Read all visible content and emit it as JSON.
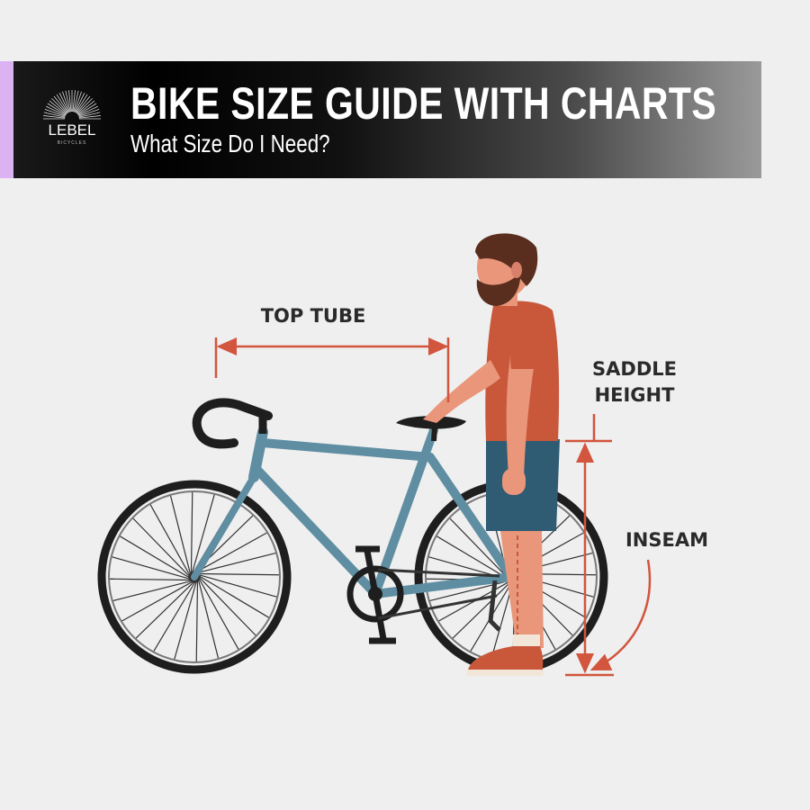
{
  "header": {
    "title": "BIKE SIZE GUIDE WITH CHARTS",
    "subtitle": "What Size Do I Need?",
    "logo": {
      "name": "LEBEL",
      "tagline": "BICYCLES"
    },
    "accent_color": "#dcb3f2"
  },
  "labels": {
    "top_tube": "TOP TUBE",
    "saddle_height_line1": "SADDLE",
    "saddle_height_line2": "HEIGHT",
    "inseam": "INSEAM"
  },
  "colors": {
    "measure_lines": "#d2553e",
    "frame": "#5f8ea2",
    "shirt": "#c9573a",
    "shorts": "#2f5b73"
  }
}
